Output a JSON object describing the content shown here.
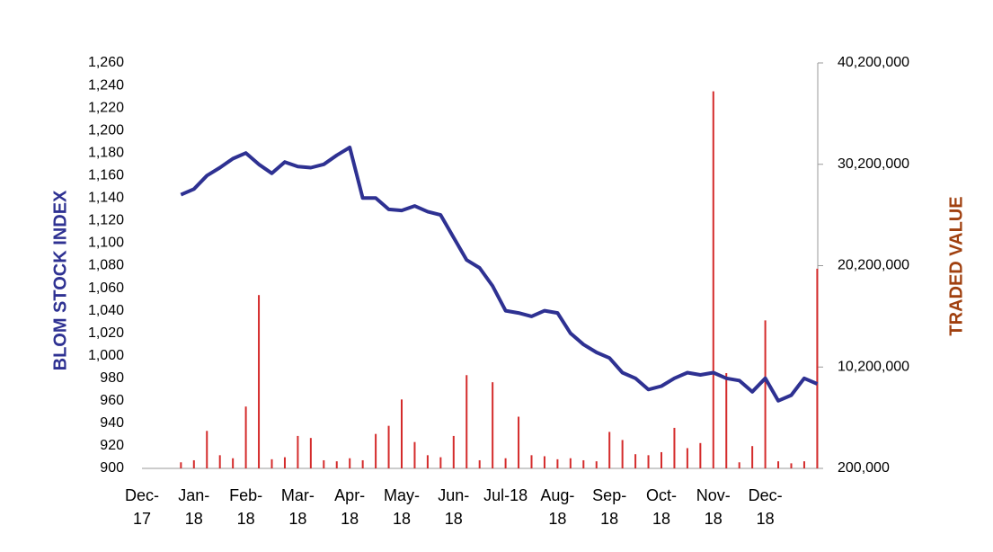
{
  "chart_data": {
    "type": "line",
    "y_label": "BLOM STOCK INDEX",
    "y2_label": "TRADED VALUE",
    "categories": [
      "Dec-17",
      null,
      null,
      null,
      "Jan-18",
      null,
      null,
      null,
      "Feb-18",
      null,
      null,
      null,
      "Mar-18",
      null,
      null,
      null,
      "Apr-18",
      null,
      null,
      null,
      "May-18",
      null,
      null,
      null,
      "Jun-18",
      null,
      null,
      null,
      "Jul-18",
      null,
      null,
      null,
      "Aug-18",
      null,
      null,
      null,
      "Sep-18",
      null,
      null,
      null,
      "Oct-18",
      null,
      null,
      null,
      "Nov-18",
      null,
      null,
      null,
      "Dec-18",
      null,
      null,
      null,
      null
    ],
    "ylim": [
      900,
      1260
    ],
    "yticks": [
      900,
      920,
      940,
      960,
      980,
      {
        "value": 1000,
        "label": "1,000"
      },
      {
        "value": 1020,
        "label": "1,020"
      },
      {
        "value": 1040,
        "label": "1,040"
      },
      {
        "value": 1060,
        "label": "1,060"
      },
      {
        "value": 1080,
        "label": "1,080"
      },
      {
        "value": 1100,
        "label": "1,100"
      },
      {
        "value": 1120,
        "label": "1,120"
      },
      {
        "value": 1140,
        "label": "1,140"
      },
      {
        "value": 1160,
        "label": "1,160"
      },
      {
        "value": 1180,
        "label": "1,180"
      },
      {
        "value": 1200,
        "label": "1,200"
      },
      {
        "value": 1220,
        "label": "1,220"
      },
      {
        "value": 1240,
        "label": "1,240"
      },
      {
        "value": 1260,
        "label": "1,260"
      }
    ],
    "y2lim": [
      200000,
      40200000
    ],
    "y2ticks": [
      {
        "value": 200000,
        "label": "200,000"
      },
      {
        "value": 10200000,
        "label": "10,200,000"
      },
      {
        "value": 20200000,
        "label": "20,200,000"
      },
      {
        "value": 30200000,
        "label": "30,200,000"
      },
      {
        "value": 40200000,
        "label": "40,200,000"
      }
    ],
    "series": [
      {
        "type": "line",
        "color": "#2e3192",
        "values": [
          null,
          null,
          null,
          1143,
          1148,
          1160,
          1167,
          1175,
          1180,
          1170,
          1162,
          1172,
          1168,
          1167,
          1170,
          1178,
          1185,
          1140,
          1140,
          1130,
          1129,
          1133,
          1128,
          1125,
          1105,
          1085,
          1078,
          1062,
          1040,
          1038,
          1035,
          1040,
          1038,
          1020,
          1010,
          1003,
          998,
          985,
          980,
          970,
          973,
          980,
          985,
          983,
          985,
          980,
          978,
          968,
          980,
          960,
          965,
          980,
          975
        ]
      },
      {
        "type": "bar",
        "axis": "y2",
        "color": "#d42b2b",
        "values": [
          null,
          null,
          null,
          800000,
          1000000,
          3900000,
          1500000,
          1200000,
          6300000,
          17300000,
          1100000,
          1300000,
          3400000,
          3200000,
          1000000,
          900000,
          1200000,
          1000000,
          3600000,
          4400000,
          7000000,
          2800000,
          1500000,
          1300000,
          3400000,
          9400000,
          1000000,
          8700000,
          1200000,
          5300000,
          1500000,
          1400000,
          1100000,
          1200000,
          1000000,
          900000,
          3800000,
          3000000,
          1600000,
          1500000,
          1800000,
          4200000,
          2200000,
          2700000,
          37400000,
          9600000,
          800000,
          2400000,
          14800000,
          900000,
          700000,
          900000,
          19900000
        ]
      }
    ]
  }
}
